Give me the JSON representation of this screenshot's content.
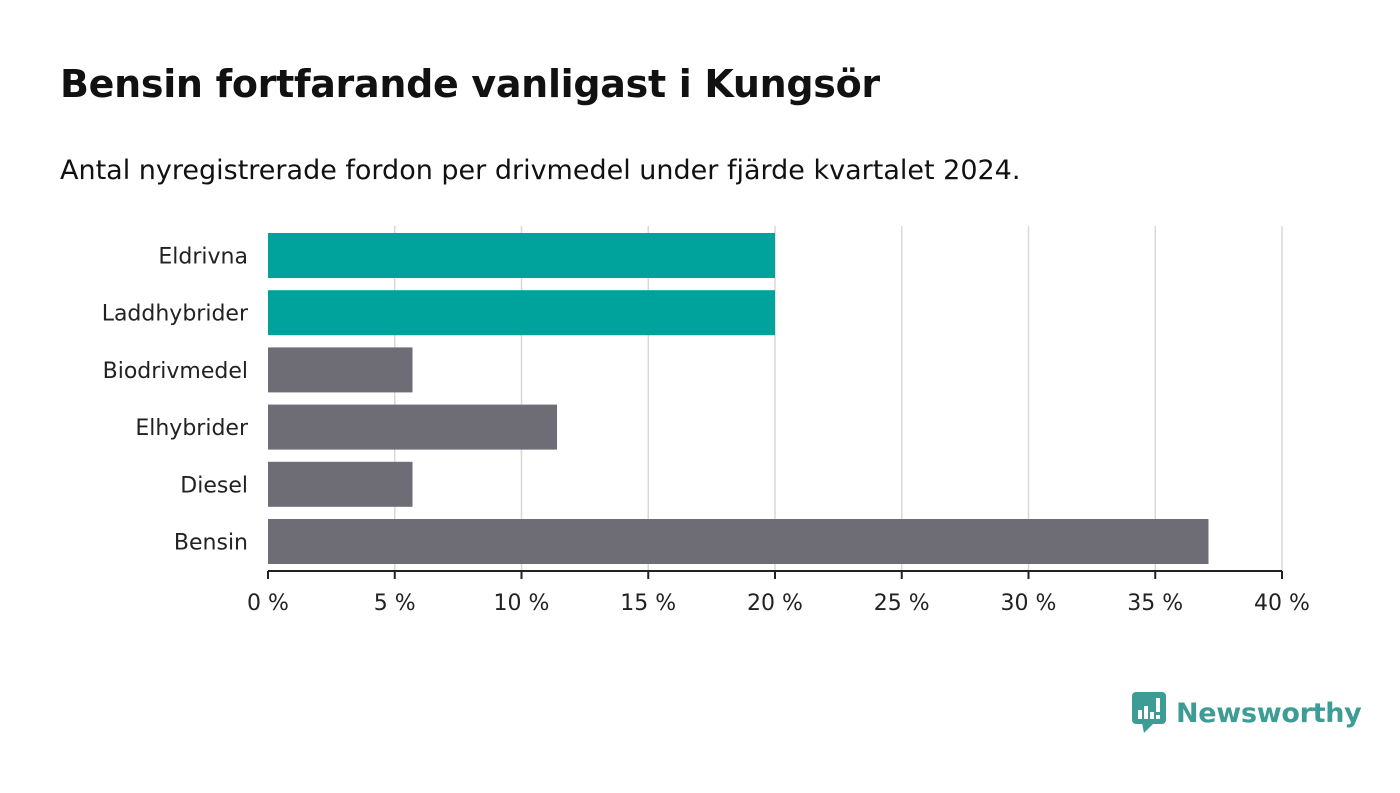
{
  "title": "Bensin fortfarande vanligast i Kungsör",
  "subtitle": "Antal nyregistrerade fordon per drivmedel under fjärde kvartalet 2024.",
  "brand": {
    "name": "Newsworthy",
    "color": "#3d9c95"
  },
  "colors": {
    "highlight": "#00a39b",
    "default": "#6e6d75",
    "grid": "#d8d8d8",
    "axis": "#222222"
  },
  "chart_data": {
    "type": "bar",
    "orientation": "horizontal",
    "categories": [
      "Eldrivna",
      "Laddhybrider",
      "Biodrivmedel",
      "Elhybrider",
      "Diesel",
      "Bensin"
    ],
    "values": [
      20.0,
      20.0,
      5.7,
      11.4,
      5.7,
      37.1
    ],
    "highlighted": [
      true,
      true,
      false,
      false,
      false,
      false
    ],
    "title": "Bensin fortfarande vanligast i Kungsör",
    "subtitle": "Antal nyregistrerade fordon per drivmedel under fjärde kvartalet 2024.",
    "xlim": [
      0,
      40
    ],
    "xticks": [
      0,
      5,
      10,
      15,
      20,
      25,
      30,
      35,
      40
    ],
    "xtick_labels": [
      "0 %",
      "5 %",
      "10 %",
      "15 %",
      "20 %",
      "25 %",
      "30 %",
      "35 %",
      "40 %"
    ],
    "grid": true,
    "legend": "none"
  }
}
